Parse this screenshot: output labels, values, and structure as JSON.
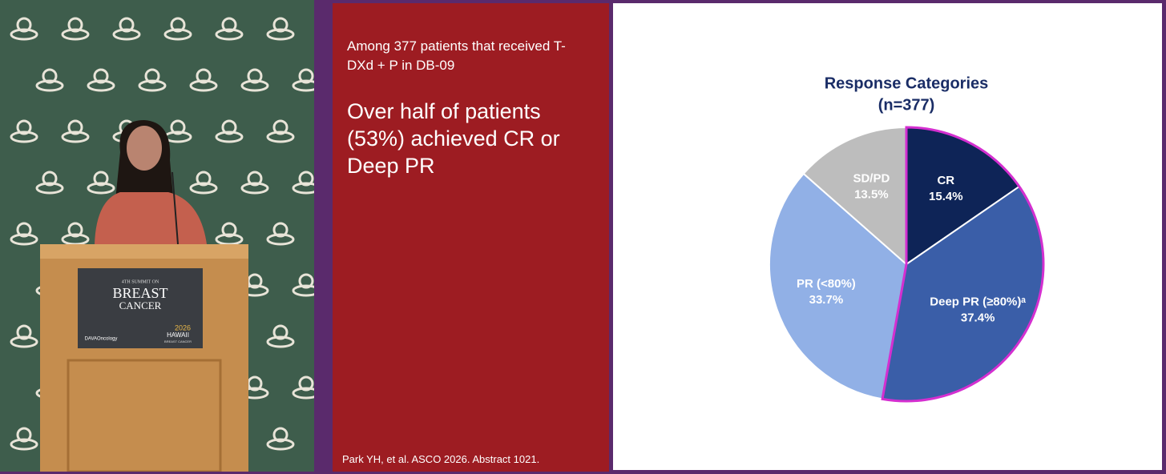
{
  "stage": {
    "sign_top": "4TH SUMMIT ON",
    "sign_title_1": "BREAST",
    "sign_title_2": "CANCER",
    "sign_left_logo": "DAVAOncology",
    "sign_year": "2026",
    "sign_right_1": "HAWAII",
    "sign_right_2": "BREAST CANCER"
  },
  "slide": {
    "intro": "Among 377 patients that received T-DXd + P in DB-09",
    "headline": "Over half of patients (53%) achieved CR or Deep PR",
    "citation": "Park YH, et al. ASCO 2026. Abstract 1021."
  },
  "chart_data": {
    "type": "pie",
    "title": "Response Categories",
    "subtitle": "(n=377)",
    "categories": [
      "CR",
      "Deep PR (≥80%)ᵃ",
      "PR (<80%)",
      "SD/PD"
    ],
    "values": [
      15.4,
      37.4,
      33.7,
      13.5
    ],
    "value_labels": [
      "15.4%",
      "37.4%",
      "33.7%",
      "13.5%"
    ],
    "colors": [
      "#0e2457",
      "#3a5ea8",
      "#91b0e6",
      "#bdbdbd"
    ]
  }
}
